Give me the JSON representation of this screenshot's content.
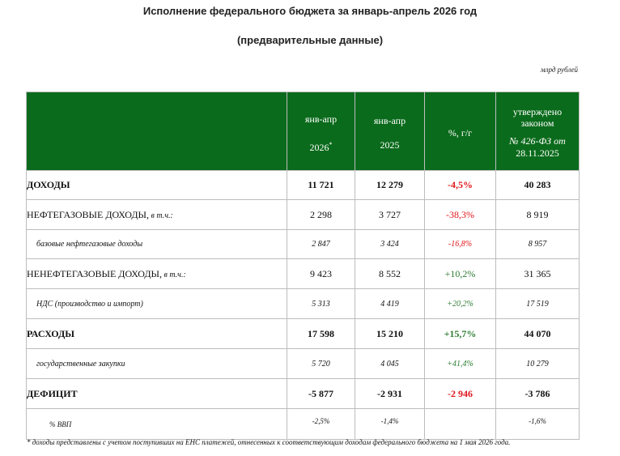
{
  "title": "Исполнение федерального бюджета за январь-апрель 2026 год",
  "subtitle": "(предварительные данные)",
  "unit": "млрд рублей",
  "columns": {
    "c1_line1": "янв-апр",
    "c1_line2": "2026",
    "c1_mark": "*",
    "c2_line1": "янв-апр",
    "c2_line2": "2025",
    "c3_line1": "%, г/г",
    "c4_line1": "утверждено",
    "c4_line2": "законом",
    "c4_line3": "№ 426-ФЗ от",
    "c4_line4": "28.11.2025"
  },
  "rows": [
    {
      "label": "ДОХОДЫ",
      "label_note": "",
      "v2026": "11 721",
      "v2025": "12 279",
      "pct": "-4,5%",
      "pct_color": "#e0151a",
      "law": "40 283"
    },
    {
      "label": "НЕФТЕГАЗОВЫЕ ДОХОДЫ,",
      "label_note": " в т.ч.:",
      "v2026": "2 298",
      "v2025": "3 727",
      "pct": "-38,3%",
      "pct_color": "#e0151a",
      "law": "8 919"
    },
    {
      "label": "базовые нефтегазовые доходы",
      "label_note": "",
      "v2026": "2 847",
      "v2025": "3 424",
      "pct": "-16,8%",
      "pct_color": "#e0151a",
      "law": "8 957"
    },
    {
      "label": "НЕНЕФТЕГАЗОВЫЕ ДОХОДЫ,",
      "label_note": " в т.ч.:",
      "v2026": "9 423",
      "v2025": "8 552",
      "pct": "+10,2%",
      "pct_color": "#2e7d32",
      "law": "31 365"
    },
    {
      "label": "НДС (производство и импорт)",
      "label_note": "",
      "v2026": "5 313",
      "v2025": "4 419",
      "pct": "+20,2%",
      "pct_color": "#2e7d32",
      "law": "17 519"
    },
    {
      "label": "РАСХОДЫ",
      "label_note": "",
      "v2026": "17 598",
      "v2025": "15 210",
      "pct": "+15,7%",
      "pct_color": "#2e7d32",
      "law": "44 070"
    },
    {
      "label": "государственные закупки",
      "label_note": "",
      "v2026": "5 720",
      "v2025": "4 045",
      "pct": "+41,4%",
      "pct_color": "#2e7d32",
      "law": "10 279"
    },
    {
      "label": "ДЕФИЦИТ",
      "label_note": "",
      "v2026": "-5 877",
      "v2025": "-2 931",
      "pct": "-2 946",
      "pct_color": "#e0151a",
      "law": "-3 786"
    },
    {
      "label": "% ВВП",
      "label_note": "",
      "v2026": "-2,5%",
      "v2025": "-1,4%",
      "pct": "",
      "pct_color": "#111111",
      "law": "-1,6%"
    }
  ],
  "footnote": "* доходы представлены с учетом поступивших на ЕНС платежей, отнесенных к соответствующим доходам федерального бюджета на 1 мая 2026 года."
}
